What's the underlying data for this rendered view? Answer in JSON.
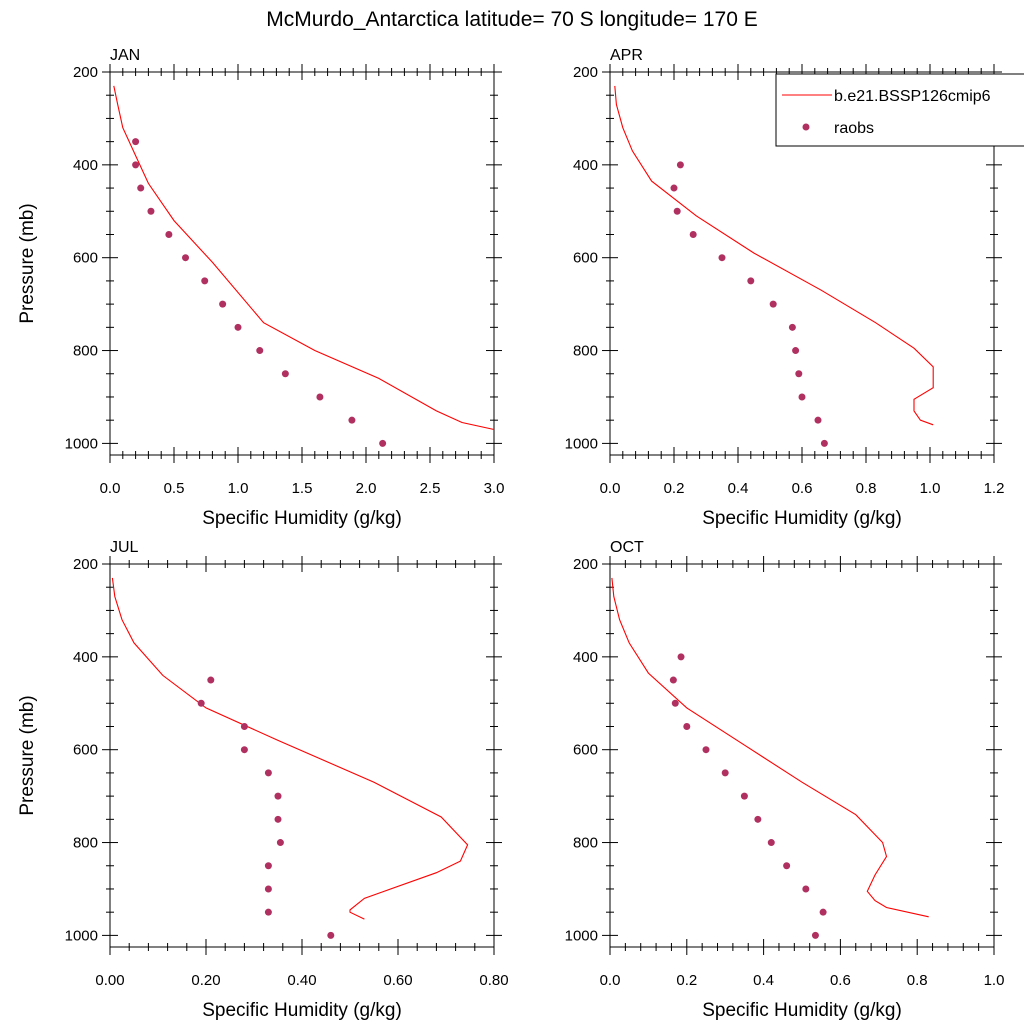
{
  "title": "McMurdo_Antarctica  latitude= 70 S longitude= 170 E",
  "legend": {
    "placement": "top-right",
    "model_label": "b.e21.BSSP126cmip6",
    "obs_label": "raobs"
  },
  "colors": {
    "model_line": "#ff0000",
    "obs_marker": "#b03060"
  },
  "chart_data": [
    {
      "type": "line",
      "panel": "JAN",
      "xlabel": "Specific Humidity (g/kg)",
      "ylabel": "Pressure (mb)",
      "xlim": [
        0,
        3.0
      ],
      "ylim": [
        1025,
        200
      ],
      "xticks": [
        "0.0",
        "0.5",
        "1.0",
        "1.5",
        "2.0",
        "2.5",
        "3.0"
      ],
      "xtick_values": [
        0,
        0.5,
        1.0,
        1.5,
        2.0,
        2.5,
        3.0
      ],
      "yticks": [
        "200",
        "400",
        "600",
        "800",
        "1000"
      ],
      "series": [
        {
          "name": "b.e21.BSSP126cmip6",
          "kind": "line",
          "x": [
            0.03,
            0.06,
            0.1,
            0.2,
            0.3,
            0.5,
            0.8,
            1.2,
            1.6,
            2.1,
            2.55,
            2.75,
            3.0
          ],
          "y": [
            230,
            270,
            320,
            380,
            440,
            520,
            610,
            740,
            800,
            860,
            930,
            955,
            970
          ]
        },
        {
          "name": "raobs",
          "kind": "scatter",
          "x": [
            0.2,
            0.2,
            0.24,
            0.32,
            0.46,
            0.59,
            0.74,
            0.88,
            1.0,
            1.17,
            1.37,
            1.64,
            1.89,
            2.13
          ],
          "y": [
            350,
            400,
            450,
            500,
            550,
            600,
            650,
            700,
            750,
            800,
            850,
            900,
            950,
            1000
          ]
        }
      ]
    },
    {
      "type": "line",
      "panel": "APR",
      "xlabel": "Specific Humidity (g/kg)",
      "ylabel": "",
      "xlim": [
        0,
        1.2
      ],
      "ylim": [
        1025,
        200
      ],
      "xticks": [
        "0.0",
        "0.2",
        "0.4",
        "0.6",
        "0.8",
        "1.0",
        "1.2"
      ],
      "xtick_values": [
        0,
        0.2,
        0.4,
        0.6,
        0.8,
        1.0,
        1.2
      ],
      "yticks": [
        "200",
        "400",
        "600",
        "800",
        "1000"
      ],
      "series": [
        {
          "name": "b.e21.BSSP126cmip6",
          "kind": "line",
          "x": [
            0.015,
            0.02,
            0.04,
            0.07,
            0.13,
            0.27,
            0.45,
            0.66,
            0.83,
            0.95,
            1.01,
            1.01,
            0.95,
            0.95,
            0.97,
            1.01
          ],
          "y": [
            230,
            270,
            320,
            370,
            435,
            510,
            590,
            670,
            740,
            795,
            835,
            880,
            905,
            930,
            950,
            960
          ]
        },
        {
          "name": "raobs",
          "kind": "scatter",
          "x": [
            0.22,
            0.2,
            0.21,
            0.26,
            0.35,
            0.44,
            0.51,
            0.57,
            0.58,
            0.59,
            0.6,
            0.65,
            0.67
          ],
          "y": [
            400,
            450,
            500,
            550,
            600,
            650,
            700,
            750,
            800,
            850,
            900,
            950,
            1000
          ]
        }
      ]
    },
    {
      "type": "line",
      "panel": "JUL",
      "xlabel": "Specific Humidity (g/kg)",
      "ylabel": "Pressure (mb)",
      "xlim": [
        0,
        0.8
      ],
      "ylim": [
        1025,
        200
      ],
      "xticks": [
        "0.00",
        "0.20",
        "0.40",
        "0.60",
        "0.80"
      ],
      "xtick_values": [
        0,
        0.2,
        0.4,
        0.6,
        0.8
      ],
      "yticks": [
        "200",
        "400",
        "600",
        "800",
        "1000"
      ],
      "series": [
        {
          "name": "b.e21.BSSP126cmip6",
          "kind": "line",
          "x": [
            0.005,
            0.01,
            0.025,
            0.05,
            0.11,
            0.2,
            0.35,
            0.55,
            0.69,
            0.745,
            0.73,
            0.68,
            0.53,
            0.5,
            0.5,
            0.53
          ],
          "y": [
            230,
            270,
            320,
            370,
            440,
            510,
            580,
            670,
            745,
            805,
            840,
            865,
            920,
            945,
            950,
            965
          ]
        },
        {
          "name": "raobs",
          "kind": "scatter",
          "x": [
            0.21,
            0.19,
            0.28,
            0.28,
            0.33,
            0.35,
            0.35,
            0.355,
            0.33,
            0.33,
            0.33,
            0.46
          ],
          "y": [
            450,
            500,
            550,
            600,
            650,
            700,
            750,
            800,
            850,
            900,
            950,
            1000
          ]
        }
      ]
    },
    {
      "type": "line",
      "panel": "OCT",
      "xlabel": "Specific Humidity (g/kg)",
      "ylabel": "",
      "xlim": [
        0,
        1.0
      ],
      "ylim": [
        1025,
        200
      ],
      "xticks": [
        "0.0",
        "0.2",
        "0.4",
        "0.6",
        "0.8",
        "1.0"
      ],
      "xtick_values": [
        0,
        0.2,
        0.4,
        0.6,
        0.8,
        1.0
      ],
      "yticks": [
        "200",
        "400",
        "600",
        "800",
        "1000"
      ],
      "series": [
        {
          "name": "b.e21.BSSP126cmip6",
          "kind": "line",
          "x": [
            0.005,
            0.01,
            0.025,
            0.05,
            0.1,
            0.2,
            0.35,
            0.5,
            0.64,
            0.71,
            0.72,
            0.69,
            0.67,
            0.69,
            0.72,
            0.83
          ],
          "y": [
            230,
            270,
            320,
            370,
            435,
            510,
            590,
            670,
            740,
            800,
            830,
            870,
            905,
            925,
            940,
            960
          ]
        },
        {
          "name": "raobs",
          "kind": "scatter",
          "x": [
            0.185,
            0.165,
            0.17,
            0.2,
            0.25,
            0.3,
            0.35,
            0.385,
            0.42,
            0.46,
            0.51,
            0.555,
            0.535
          ],
          "y": [
            400,
            450,
            500,
            550,
            600,
            650,
            700,
            750,
            800,
            850,
            900,
            950,
            1000
          ]
        }
      ]
    }
  ]
}
